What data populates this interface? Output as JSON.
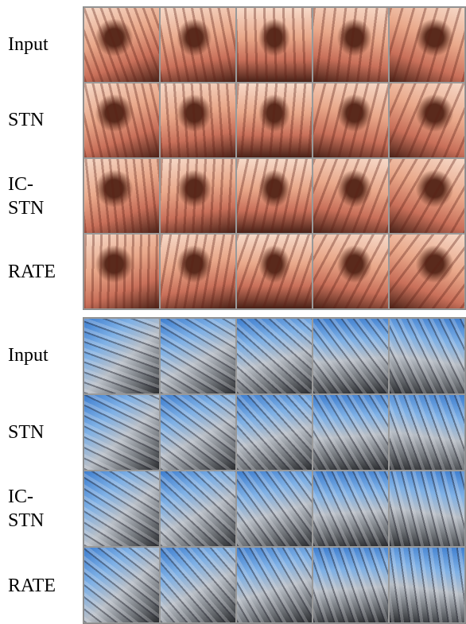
{
  "panels": [
    {
      "rows": [
        {
          "label": "Input"
        },
        {
          "label": "STN"
        },
        {
          "label": "IC-STN"
        },
        {
          "label": "RATE"
        }
      ]
    },
    {
      "rows": [
        {
          "label": "Input"
        },
        {
          "label": "STN"
        },
        {
          "label": "IC-STN"
        },
        {
          "label": "RATE"
        }
      ]
    }
  ]
}
